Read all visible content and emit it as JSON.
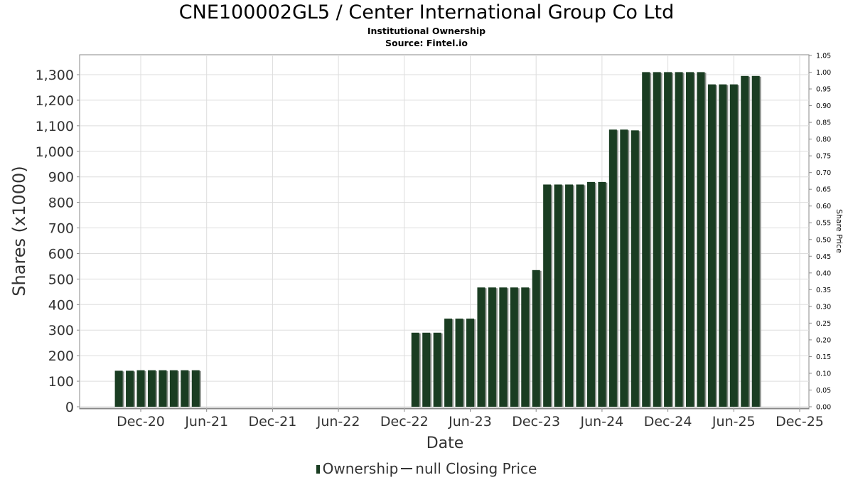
{
  "title": "CNE100002GL5 / Center International Group Co Ltd",
  "subtitle": "Institutional Ownership",
  "source": "Source: Fintel.io",
  "legend": {
    "ownership": "Ownership",
    "price": "null Closing Price"
  },
  "colors": {
    "bar": "#1a3d22",
    "bar_shadow": "#8a8f8a",
    "grid": "#dddddd"
  },
  "chart_data": {
    "type": "bar",
    "title": "CNE100002GL5 / Center International Group Co Ltd",
    "xlabel": "Date",
    "ylabel": "Shares (x1000)",
    "y2label": "Share Price",
    "ylim": [
      0,
      1380
    ],
    "y2lim": [
      0,
      1.05
    ],
    "grid": true,
    "legend_position": "bottom",
    "x_ticks": [
      "Dec-20",
      "Jun-21",
      "Dec-21",
      "Jun-22",
      "Dec-22",
      "Jun-23",
      "Dec-23",
      "Jun-24",
      "Dec-24",
      "Jun-25",
      "Dec-25"
    ],
    "y_ticks": [
      "0",
      "100",
      "200",
      "300",
      "400",
      "500",
      "600",
      "700",
      "800",
      "900",
      "1,000",
      "1,100",
      "1,200",
      "1,300"
    ],
    "y2_ticks": [
      "0.00",
      "0.05",
      "0.10",
      "0.15",
      "0.20",
      "0.25",
      "0.30",
      "0.35",
      "0.40",
      "0.45",
      "0.50",
      "0.55",
      "0.60",
      "0.65",
      "0.70",
      "0.75",
      "0.80",
      "0.85",
      "0.90",
      "0.95",
      "1.00",
      "1.05"
    ],
    "series": [
      {
        "name": "Ownership",
        "x": [
          "2020-10-01",
          "2020-11-01",
          "2020-12-01",
          "2021-01-01",
          "2021-02-01",
          "2021-03-01",
          "2021-04-01",
          "2021-05-01",
          "2023-01-01",
          "2023-02-01",
          "2023-03-01",
          "2023-04-01",
          "2023-05-01",
          "2023-06-01",
          "2023-07-01",
          "2023-08-01",
          "2023-09-01",
          "2023-10-01",
          "2023-11-01",
          "2023-12-01",
          "2024-01-01",
          "2024-02-01",
          "2024-03-01",
          "2024-04-01",
          "2024-05-01",
          "2024-06-01",
          "2024-07-01",
          "2024-08-01",
          "2024-09-01",
          "2024-10-01",
          "2024-11-01",
          "2024-12-01",
          "2025-01-01",
          "2025-02-01",
          "2025-03-01",
          "2025-04-01",
          "2025-05-01",
          "2025-06-01",
          "2025-07-01",
          "2025-08-01"
        ],
        "values": [
          141,
          141,
          143,
          143,
          143,
          143,
          143,
          143,
          290,
          290,
          290,
          345,
          345,
          345,
          467,
          467,
          467,
          467,
          467,
          535,
          870,
          870,
          870,
          870,
          880,
          880,
          1085,
          1085,
          1082,
          1310,
          1310,
          1310,
          1310,
          1310,
          1310,
          1262,
          1262,
          1262,
          1295,
          1295
        ]
      }
    ]
  }
}
